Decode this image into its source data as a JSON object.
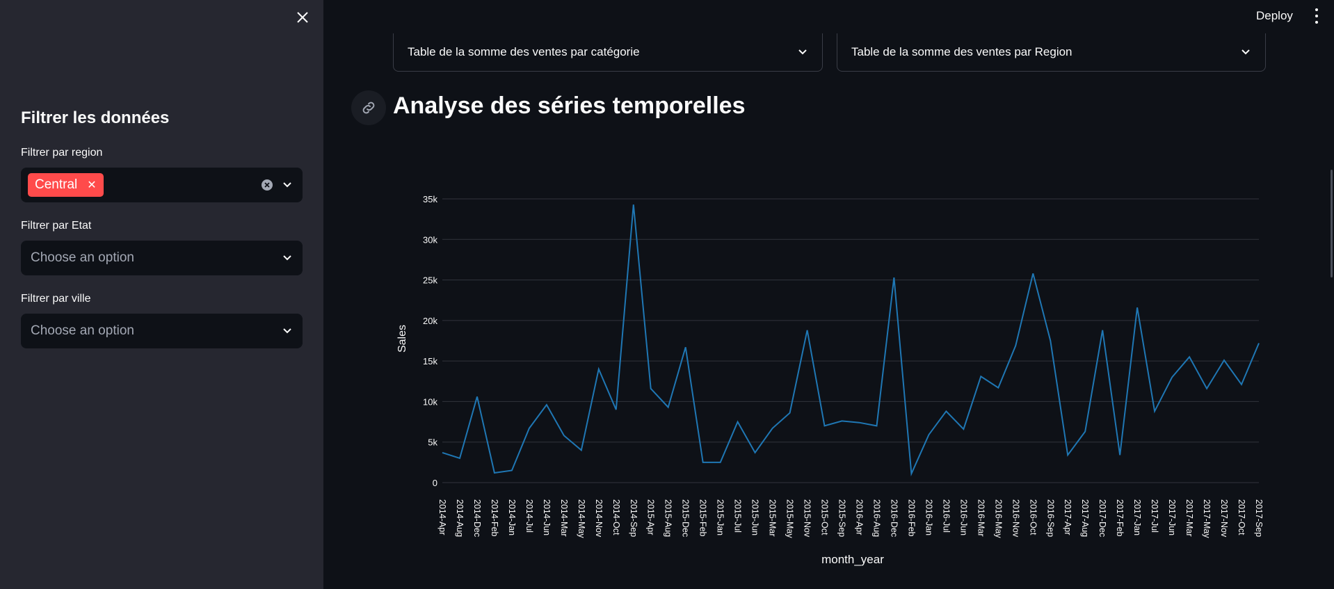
{
  "sidebar": {
    "title": "Filtrer les données",
    "filters": [
      {
        "label": "Filtrer par region",
        "selected": [
          "Central"
        ],
        "placeholder": ""
      },
      {
        "label": "Filtrer par Etat",
        "selected": [],
        "placeholder": "Choose an option"
      },
      {
        "label": "Filtrer par ville",
        "selected": [],
        "placeholder": "Choose an option"
      }
    ]
  },
  "header": {
    "deploy_label": "Deploy"
  },
  "expanders": [
    {
      "label": "Table de la somme des ventes par catégorie"
    },
    {
      "label": "Table de la somme des ventes par Region"
    }
  ],
  "section": {
    "title": "Analyse des séries temporelles"
  },
  "colors": {
    "line": "#1f77b4",
    "chip": "#ff4b4b",
    "sidebar": "#262730",
    "background": "#0e1117"
  },
  "chart_data": {
    "type": "line",
    "xlabel": "month_year",
    "ylabel": "Sales",
    "ylim": [
      0,
      35000
    ],
    "y_ticks": [
      0,
      5000,
      10000,
      15000,
      20000,
      25000,
      30000,
      35000
    ],
    "y_tick_labels": [
      "0",
      "5k",
      "10k",
      "15k",
      "20k",
      "25k",
      "30k",
      "35k"
    ],
    "grid": true,
    "categories": [
      "2014-Apr",
      "2014-Aug",
      "2014-Dec",
      "2014-Feb",
      "2014-Jan",
      "2014-Jul",
      "2014-Jun",
      "2014-Mar",
      "2014-May",
      "2014-Nov",
      "2014-Oct",
      "2014-Sep",
      "2015-Apr",
      "2015-Aug",
      "2015-Dec",
      "2015-Feb",
      "2015-Jan",
      "2015-Jul",
      "2015-Jun",
      "2015-Mar",
      "2015-May",
      "2015-Nov",
      "2015-Oct",
      "2015-Sep",
      "2016-Apr",
      "2016-Aug",
      "2016-Dec",
      "2016-Feb",
      "2016-Jan",
      "2016-Jul",
      "2016-Jun",
      "2016-Mar",
      "2016-May",
      "2016-Nov",
      "2016-Oct",
      "2016-Sep",
      "2017-Apr",
      "2017-Aug",
      "2017-Dec",
      "2017-Feb",
      "2017-Jan",
      "2017-Jul",
      "2017-Jun",
      "2017-Mar",
      "2017-May",
      "2017-Nov",
      "2017-Oct",
      "2017-Sep"
    ],
    "series": [
      {
        "values": [
          3700,
          3000,
          10600,
          1200,
          1500,
          6700,
          9600,
          5800,
          4000,
          14000,
          9000,
          34300,
          11600,
          9300,
          16700,
          2500,
          2500,
          7500,
          3700,
          6700,
          8600,
          18800,
          7000,
          7600,
          7400,
          7000,
          25300,
          1100,
          5900,
          8800,
          6600,
          13100,
          11700,
          16900,
          25800,
          17500,
          3400,
          6300,
          18800,
          3400,
          21600,
          8800,
          13000,
          15500,
          11600,
          15100,
          12100,
          17200
        ]
      }
    ]
  }
}
